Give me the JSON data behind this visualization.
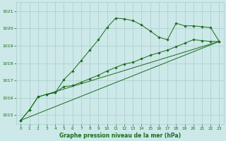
{
  "title": "Graphe pression niveau de la mer (hPa)",
  "xlim": [
    -0.5,
    23.5
  ],
  "ylim": [
    1014.5,
    1021.5
  ],
  "yticks": [
    1015,
    1016,
    1017,
    1018,
    1019,
    1020,
    1021
  ],
  "xticks": [
    0,
    1,
    2,
    3,
    4,
    5,
    6,
    7,
    8,
    9,
    10,
    11,
    12,
    13,
    14,
    15,
    16,
    17,
    18,
    19,
    20,
    21,
    22,
    23
  ],
  "background_color": "#cce8e8",
  "grid_color": "#aacccc",
  "line_color": "#1a6b1a",
  "line1_x": [
    0,
    1,
    2,
    3,
    4,
    5,
    6,
    7,
    8,
    9,
    10,
    11,
    12,
    13,
    14,
    15,
    16,
    17,
    18,
    19,
    20,
    21,
    22,
    23
  ],
  "line1_y": [
    1014.7,
    1015.3,
    1016.05,
    1016.2,
    1016.3,
    1017.05,
    1017.55,
    1018.15,
    1018.75,
    1019.35,
    1020.05,
    1020.6,
    1020.55,
    1020.45,
    1020.2,
    1019.85,
    1019.5,
    1019.35,
    1020.3,
    1020.15,
    1020.15,
    1020.1,
    1020.05,
    1019.25
  ],
  "line2_x": [
    0,
    1,
    2,
    3,
    4,
    5,
    6,
    7,
    8,
    9,
    10,
    11,
    12,
    13,
    14,
    15,
    16,
    17,
    18,
    19,
    20,
    21,
    22,
    23
  ],
  "line2_y": [
    1014.7,
    1015.3,
    1016.05,
    1016.2,
    1016.3,
    1016.65,
    1016.7,
    1016.9,
    1017.1,
    1017.3,
    1017.55,
    1017.75,
    1017.95,
    1018.05,
    1018.25,
    1018.45,
    1018.6,
    1018.75,
    1018.95,
    1019.15,
    1019.35,
    1019.3,
    1019.25,
    1019.25
  ],
  "line3_x": [
    0,
    23
  ],
  "line3_y": [
    1014.7,
    1019.25
  ],
  "line4_x": [
    3,
    23
  ],
  "line4_y": [
    1016.2,
    1019.25
  ],
  "marker_style": "D",
  "marker_size": 1.8,
  "linewidth": 0.7
}
